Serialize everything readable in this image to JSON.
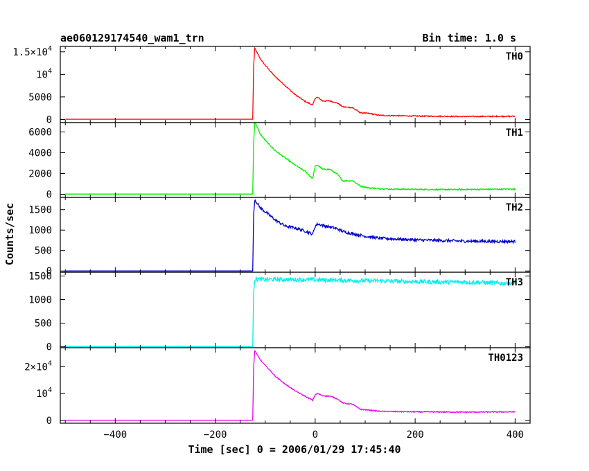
{
  "chart_data": {
    "type": "line",
    "title_left": "ae060129174540_wam1_trn",
    "title_right": "Bin time: 1.0 s",
    "xlabel": "Time [sec] 0 = 2006/01/29 17:45:40",
    "ylabel": "Counts/sec",
    "xlim": [
      -510,
      430
    ],
    "x_ticks": [
      {
        "value": -400,
        "label": "−400"
      },
      {
        "value": -200,
        "label": "−200"
      },
      {
        "value": 0,
        "label": "0"
      },
      {
        "value": 200,
        "label": "200"
      },
      {
        "value": 400,
        "label": "400"
      }
    ],
    "panels": [
      {
        "name": "TH0",
        "color": "#ff0000",
        "ylim": [
          -700,
          16200
        ],
        "y_ticks": [
          {
            "value": 0,
            "label": "0",
            "sup": ""
          },
          {
            "value": 5000,
            "label": "5000",
            "sup": ""
          },
          {
            "value": 10000,
            "label": "10",
            "sup": "4"
          },
          {
            "value": 15000,
            "label": "1.5×10",
            "sup": "4"
          }
        ],
        "noise": 120,
        "points": [
          [
            -500,
            50
          ],
          [
            -125,
            50
          ],
          [
            -123,
            12000
          ],
          [
            -121,
            15800
          ],
          [
            -110,
            13500
          ],
          [
            -100,
            12000
          ],
          [
            -80,
            9500
          ],
          [
            -60,
            7500
          ],
          [
            -40,
            5500
          ],
          [
            -20,
            4000
          ],
          [
            -5,
            3200
          ],
          [
            0,
            4700
          ],
          [
            5,
            4900
          ],
          [
            15,
            4100
          ],
          [
            30,
            4100
          ],
          [
            45,
            3600
          ],
          [
            55,
            2800
          ],
          [
            75,
            2600
          ],
          [
            90,
            1500
          ],
          [
            110,
            1300
          ],
          [
            130,
            900
          ],
          [
            200,
            750
          ],
          [
            300,
            650
          ],
          [
            400,
            700
          ]
        ]
      },
      {
        "name": "TH1",
        "color": "#00ee00",
        "ylim": [
          -300,
          6900
        ],
        "y_ticks": [
          {
            "value": 0,
            "label": "0",
            "sup": ""
          },
          {
            "value": 2000,
            "label": "2000",
            "sup": ""
          },
          {
            "value": 4000,
            "label": "4000",
            "sup": ""
          },
          {
            "value": 6000,
            "label": "6000",
            "sup": ""
          }
        ],
        "noise": 60,
        "points": [
          [
            -500,
            20
          ],
          [
            -125,
            20
          ],
          [
            -123,
            5000
          ],
          [
            -121,
            7000
          ],
          [
            -110,
            5800
          ],
          [
            -100,
            5200
          ],
          [
            -80,
            4200
          ],
          [
            -60,
            3500
          ],
          [
            -40,
            2800
          ],
          [
            -20,
            2200
          ],
          [
            -5,
            1500
          ],
          [
            0,
            2700
          ],
          [
            5,
            2800
          ],
          [
            15,
            2400
          ],
          [
            30,
            2400
          ],
          [
            45,
            1900
          ],
          [
            55,
            1300
          ],
          [
            75,
            1300
          ],
          [
            90,
            800
          ],
          [
            110,
            600
          ],
          [
            150,
            500
          ],
          [
            250,
            450
          ],
          [
            400,
            500
          ]
        ]
      },
      {
        "name": "TH2",
        "color": "#0000cc",
        "ylim": [
          -30,
          1800
        ],
        "y_ticks": [
          {
            "value": 0,
            "label": "0",
            "sup": ""
          },
          {
            "value": 500,
            "label": "500",
            "sup": ""
          },
          {
            "value": 1000,
            "label": "1000",
            "sup": ""
          },
          {
            "value": 1500,
            "label": "1500",
            "sup": ""
          }
        ],
        "noise": 35,
        "points": [
          [
            -500,
            0
          ],
          [
            -125,
            0
          ],
          [
            -123,
            1400
          ],
          [
            -121,
            1750
          ],
          [
            -110,
            1550
          ],
          [
            -100,
            1450
          ],
          [
            -80,
            1250
          ],
          [
            -60,
            1100
          ],
          [
            -40,
            1050
          ],
          [
            -20,
            980
          ],
          [
            -5,
            900
          ],
          [
            0,
            1100
          ],
          [
            5,
            1150
          ],
          [
            20,
            1100
          ],
          [
            40,
            1050
          ],
          [
            60,
            950
          ],
          [
            80,
            900
          ],
          [
            100,
            850
          ],
          [
            130,
            800
          ],
          [
            200,
            760
          ],
          [
            300,
            730
          ],
          [
            400,
            720
          ]
        ]
      },
      {
        "name": "TH3",
        "color": "#00eeee",
        "ylim": [
          -20,
          1580
        ],
        "y_ticks": [
          {
            "value": 0,
            "label": "0",
            "sup": ""
          },
          {
            "value": 500,
            "label": "500",
            "sup": ""
          },
          {
            "value": 1000,
            "label": "1000",
            "sup": ""
          },
          {
            "value": 1500,
            "label": "1500",
            "sup": ""
          }
        ],
        "noise": 45,
        "points": [
          [
            -500,
            5
          ],
          [
            -125,
            5
          ],
          [
            -123,
            1200
          ],
          [
            -121,
            1430
          ],
          [
            0,
            1420
          ],
          [
            100,
            1400
          ],
          [
            200,
            1380
          ],
          [
            300,
            1370
          ],
          [
            400,
            1340
          ]
        ]
      },
      {
        "name": "TH0123",
        "color": "#ee00ee",
        "ylim": [
          -1000,
          27000
        ],
        "y_ticks": [
          {
            "value": 0,
            "label": "0",
            "sup": ""
          },
          {
            "value": 10000,
            "label": "10",
            "sup": "4"
          },
          {
            "value": 20000,
            "label": "2×10",
            "sup": "4"
          }
        ],
        "noise": 180,
        "points": [
          [
            -500,
            100
          ],
          [
            -125,
            100
          ],
          [
            -123,
            20000
          ],
          [
            -121,
            26000
          ],
          [
            -110,
            22500
          ],
          [
            -100,
            20500
          ],
          [
            -80,
            16500
          ],
          [
            -60,
            13500
          ],
          [
            -40,
            11000
          ],
          [
            -20,
            9000
          ],
          [
            -5,
            7500
          ],
          [
            0,
            9500
          ],
          [
            5,
            10000
          ],
          [
            15,
            9200
          ],
          [
            30,
            9000
          ],
          [
            45,
            8000
          ],
          [
            55,
            6500
          ],
          [
            75,
            6000
          ],
          [
            90,
            4200
          ],
          [
            110,
            3800
          ],
          [
            130,
            3400
          ],
          [
            200,
            3200
          ],
          [
            300,
            3100
          ],
          [
            400,
            3200
          ]
        ]
      }
    ]
  }
}
